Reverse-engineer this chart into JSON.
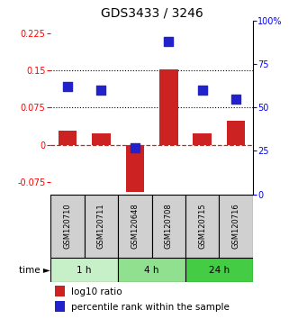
{
  "title": "GDS3433 / 3246",
  "samples": [
    "GSM120710",
    "GSM120711",
    "GSM120648",
    "GSM120708",
    "GSM120715",
    "GSM120716"
  ],
  "log10_ratio": [
    0.028,
    0.022,
    -0.095,
    0.152,
    0.022,
    0.048
  ],
  "percentile_rank": [
    62,
    60,
    27,
    88,
    60,
    55
  ],
  "time_groups": [
    {
      "label": "1 h",
      "color": "#c8f0c8",
      "start": 0,
      "end": 1
    },
    {
      "label": "4 h",
      "color": "#90e090",
      "start": 2,
      "end": 3
    },
    {
      "label": "24 h",
      "color": "#44cc44",
      "start": 4,
      "end": 5
    }
  ],
  "ylim_left": [
    -0.1,
    0.25
  ],
  "ylim_right": [
    0,
    100
  ],
  "yticks_left": [
    -0.075,
    0,
    0.075,
    0.15,
    0.225
  ],
  "ytick_labels_left": [
    "-0.075",
    "0",
    "0.075",
    "0.15",
    "0.225"
  ],
  "yticks_right": [
    0,
    25,
    50,
    75,
    100
  ],
  "ytick_labels_right": [
    "0",
    "25",
    "50",
    "75",
    "100%"
  ],
  "hlines": [
    0.075,
    0.15
  ],
  "bar_color": "#cc2222",
  "dot_color": "#2222cc",
  "bar_width": 0.55,
  "dot_size": 55,
  "zero_line_color": "#cc2222",
  "zero_line_style": "--",
  "hline_style": ":",
  "hline_color": "black",
  "sample_bg_color": "#d0d0d0",
  "title_fontsize": 10,
  "tick_fontsize": 7,
  "label_fontsize": 7.5
}
